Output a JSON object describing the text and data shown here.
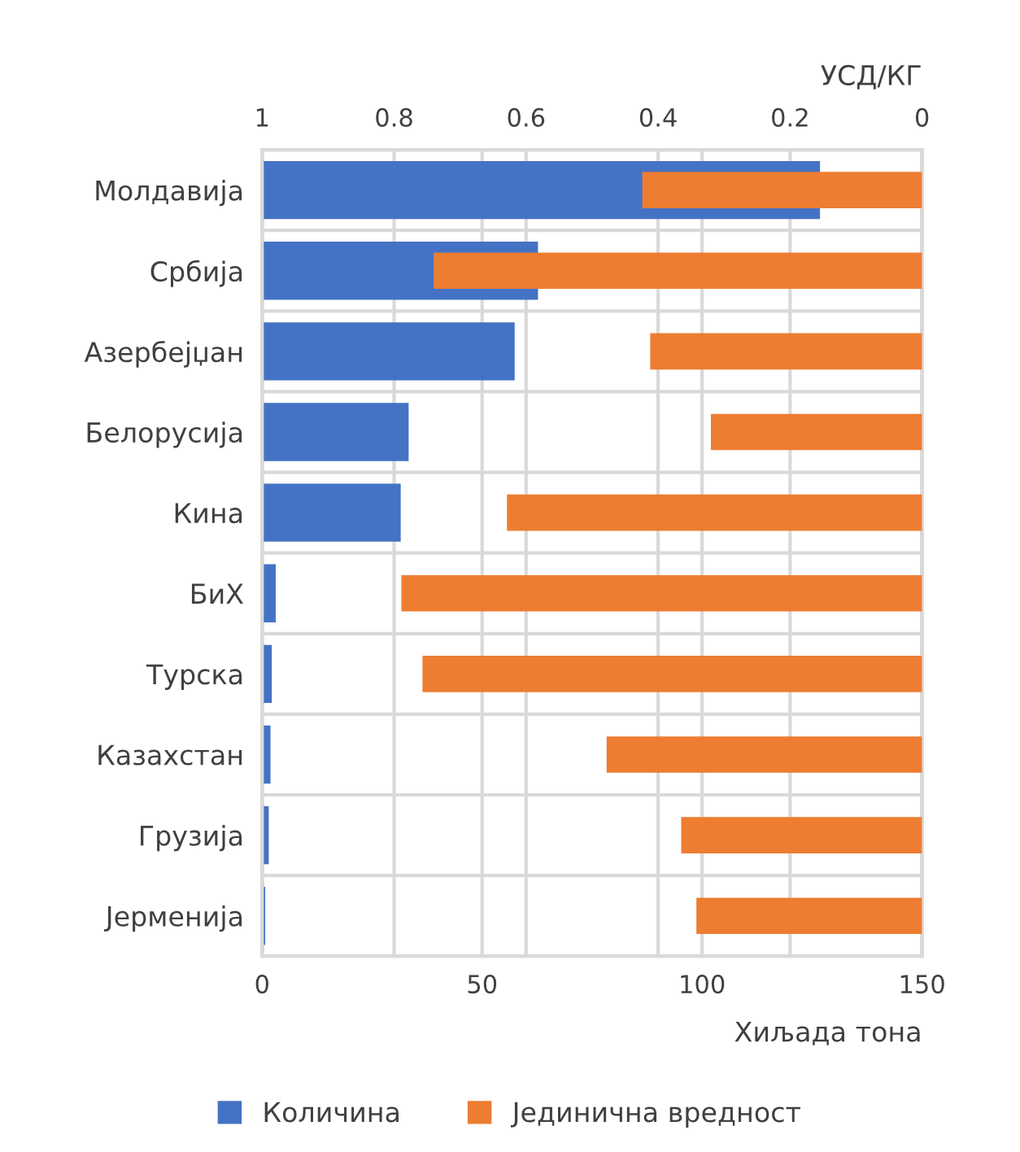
{
  "chart_data": {
    "type": "bar",
    "orientation": "horizontal",
    "categories": [
      "Молдавија",
      "Србија",
      "Азербејџан",
      "Белорусија",
      "Кина",
      "БиХ",
      "Турска",
      "Казахстан",
      "Грузија",
      "Јерменија"
    ],
    "series": [
      {
        "name": "Количина",
        "color": "#4472c4",
        "values": [
          126.8,
          62.7,
          57.4,
          33.3,
          31.5,
          3.1,
          2.2,
          1.9,
          1.5,
          0.7
        ]
      },
      {
        "name": "Јединична вредност",
        "color": "#ed7d31",
        "axis": "x2",
        "values": [
          0.424,
          0.74,
          0.412,
          0.32,
          0.629,
          0.789,
          0.757,
          0.478,
          0.365,
          0.342
        ]
      }
    ],
    "xlim": [
      0,
      150
    ],
    "xticks": [
      0,
      50,
      100,
      150
    ],
    "xlabel": "Хиљада тона",
    "x2lim": [
      1,
      0
    ],
    "x2ticks": [
      1,
      0.8,
      0.6,
      0.4,
      0.2,
      0
    ],
    "x2label": "УСД/КГ",
    "grid": true,
    "legend": "bottom"
  }
}
